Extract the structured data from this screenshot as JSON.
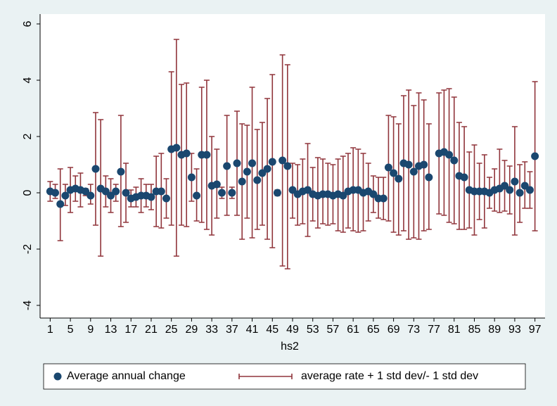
{
  "chart_data": {
    "type": "errorbar",
    "x_label": "hs2",
    "x": [
      1,
      2,
      3,
      4,
      5,
      6,
      7,
      8,
      9,
      10,
      11,
      12,
      13,
      14,
      15,
      16,
      17,
      18,
      19,
      20,
      21,
      22,
      23,
      24,
      25,
      26,
      27,
      28,
      29,
      30,
      31,
      32,
      33,
      34,
      35,
      36,
      37,
      38,
      39,
      40,
      41,
      42,
      43,
      44,
      45,
      46,
      47,
      48,
      49,
      50,
      51,
      52,
      53,
      54,
      55,
      56,
      57,
      58,
      59,
      60,
      61,
      62,
      63,
      64,
      65,
      66,
      67,
      68,
      69,
      70,
      71,
      72,
      73,
      74,
      75,
      76,
      78,
      79,
      80,
      81,
      82,
      83,
      84,
      85,
      86,
      87,
      88,
      89,
      90,
      91,
      92,
      93,
      94,
      95,
      96,
      97
    ],
    "series": [
      {
        "name": "Average annual change",
        "color": "#1a476f",
        "values": [
          0.05,
          0.0,
          -0.4,
          -0.1,
          0.1,
          0.15,
          0.1,
          0.05,
          -0.1,
          0.85,
          0.15,
          0.05,
          -0.1,
          0.05,
          0.75,
          0.0,
          -0.2,
          -0.15,
          -0.1,
          -0.1,
          -0.15,
          0.05,
          0.05,
          -0.2,
          1.55,
          1.6,
          1.35,
          1.4,
          0.55,
          -0.1,
          1.35,
          1.35,
          0.25,
          0.3,
          0.0,
          0.95,
          0.0,
          1.05,
          0.4,
          0.75,
          1.05,
          0.45,
          0.7,
          0.85,
          1.1,
          0.0,
          1.15,
          0.95,
          0.1,
          -0.05,
          0.05,
          0.1,
          -0.05,
          -0.1,
          -0.05,
          -0.05,
          -0.1,
          -0.05,
          -0.1,
          0.05,
          0.1,
          0.1,
          0.0,
          0.05,
          -0.05,
          -0.2,
          -0.2,
          0.9,
          0.7,
          0.5,
          1.05,
          1.0,
          0.75,
          0.95,
          1.0,
          0.55,
          1.4,
          1.45,
          1.35,
          1.15,
          0.6,
          0.55,
          0.1,
          0.05,
          0.05,
          0.05,
          0.0,
          0.1,
          0.15,
          0.25,
          0.1,
          0.4,
          0.0,
          0.25,
          0.1,
          1.3
        ]
      },
      {
        "name": "average rate + 1 std dev/- 1 std dev",
        "color": "#90353b",
        "low": [
          -0.3,
          -0.2,
          -1.7,
          -0.45,
          -0.7,
          -0.3,
          -0.5,
          -0.1,
          -0.4,
          -1.15,
          -2.25,
          -0.5,
          -0.7,
          -0.3,
          -1.2,
          -1.05,
          -0.5,
          -0.5,
          -0.7,
          -0.5,
          -0.6,
          -1.2,
          -1.25,
          -0.9,
          -1.15,
          -2.25,
          -1.15,
          -1.2,
          -0.3,
          -1.0,
          -1.05,
          -1.3,
          -1.5,
          -0.9,
          -0.2,
          -0.8,
          -0.2,
          -0.8,
          -1.65,
          -0.9,
          -1.6,
          -1.3,
          -1.15,
          -1.65,
          -1.95,
          -0.1,
          -2.6,
          -2.7,
          -0.9,
          -1.15,
          -1.1,
          -1.55,
          -1.0,
          -1.25,
          -1.1,
          -1.15,
          -1.1,
          -1.35,
          -1.4,
          -1.25,
          -1.35,
          -1.4,
          -1.35,
          -1.0,
          -0.7,
          -0.9,
          -0.95,
          -1.0,
          -1.4,
          -1.5,
          -1.35,
          -1.65,
          -1.6,
          -1.65,
          -1.35,
          -1.3,
          -0.75,
          -0.8,
          -1.05,
          -1.1,
          -1.3,
          -1.3,
          -1.25,
          -1.5,
          -0.95,
          -1.25,
          -0.55,
          -0.65,
          -0.7,
          -0.65,
          -0.75,
          -1.5,
          -1.05,
          -0.55,
          -0.55,
          -1.35
        ],
        "high": [
          0.4,
          0.3,
          0.85,
          0.3,
          0.9,
          0.6,
          0.7,
          0.15,
          0.3,
          2.85,
          2.6,
          0.6,
          0.5,
          0.3,
          2.75,
          1.05,
          0.1,
          0.2,
          0.5,
          0.3,
          0.3,
          1.3,
          1.4,
          0.5,
          4.3,
          5.45,
          3.85,
          3.9,
          1.4,
          0.85,
          3.75,
          4.0,
          2.0,
          1.55,
          0.2,
          2.75,
          0.2,
          2.9,
          2.45,
          2.4,
          3.75,
          2.25,
          2.5,
          3.35,
          4.2,
          0.1,
          4.9,
          4.55,
          1.05,
          1.0,
          1.2,
          1.75,
          0.9,
          1.25,
          1.2,
          1.05,
          1.0,
          1.2,
          1.3,
          1.4,
          1.6,
          1.55,
          1.4,
          1.05,
          0.6,
          0.55,
          0.55,
          2.75,
          2.7,
          2.45,
          3.45,
          3.65,
          3.1,
          3.55,
          3.3,
          2.45,
          3.55,
          3.65,
          3.7,
          3.4,
          2.5,
          2.35,
          1.45,
          1.7,
          1.05,
          1.35,
          0.55,
          0.85,
          1.55,
          1.15,
          0.95,
          2.35,
          1.0,
          1.1,
          0.75,
          3.95
        ]
      }
    ],
    "xlim": [
      -1,
      99
    ],
    "ylim": [
      -4.45,
      6.35
    ],
    "xticks": [
      1,
      5,
      9,
      13,
      17,
      21,
      25,
      29,
      33,
      37,
      41,
      45,
      49,
      53,
      57,
      61,
      65,
      69,
      73,
      77,
      81,
      85,
      89,
      93,
      97
    ],
    "yticks": [
      -4,
      -2,
      0,
      2,
      4,
      6
    ]
  }
}
